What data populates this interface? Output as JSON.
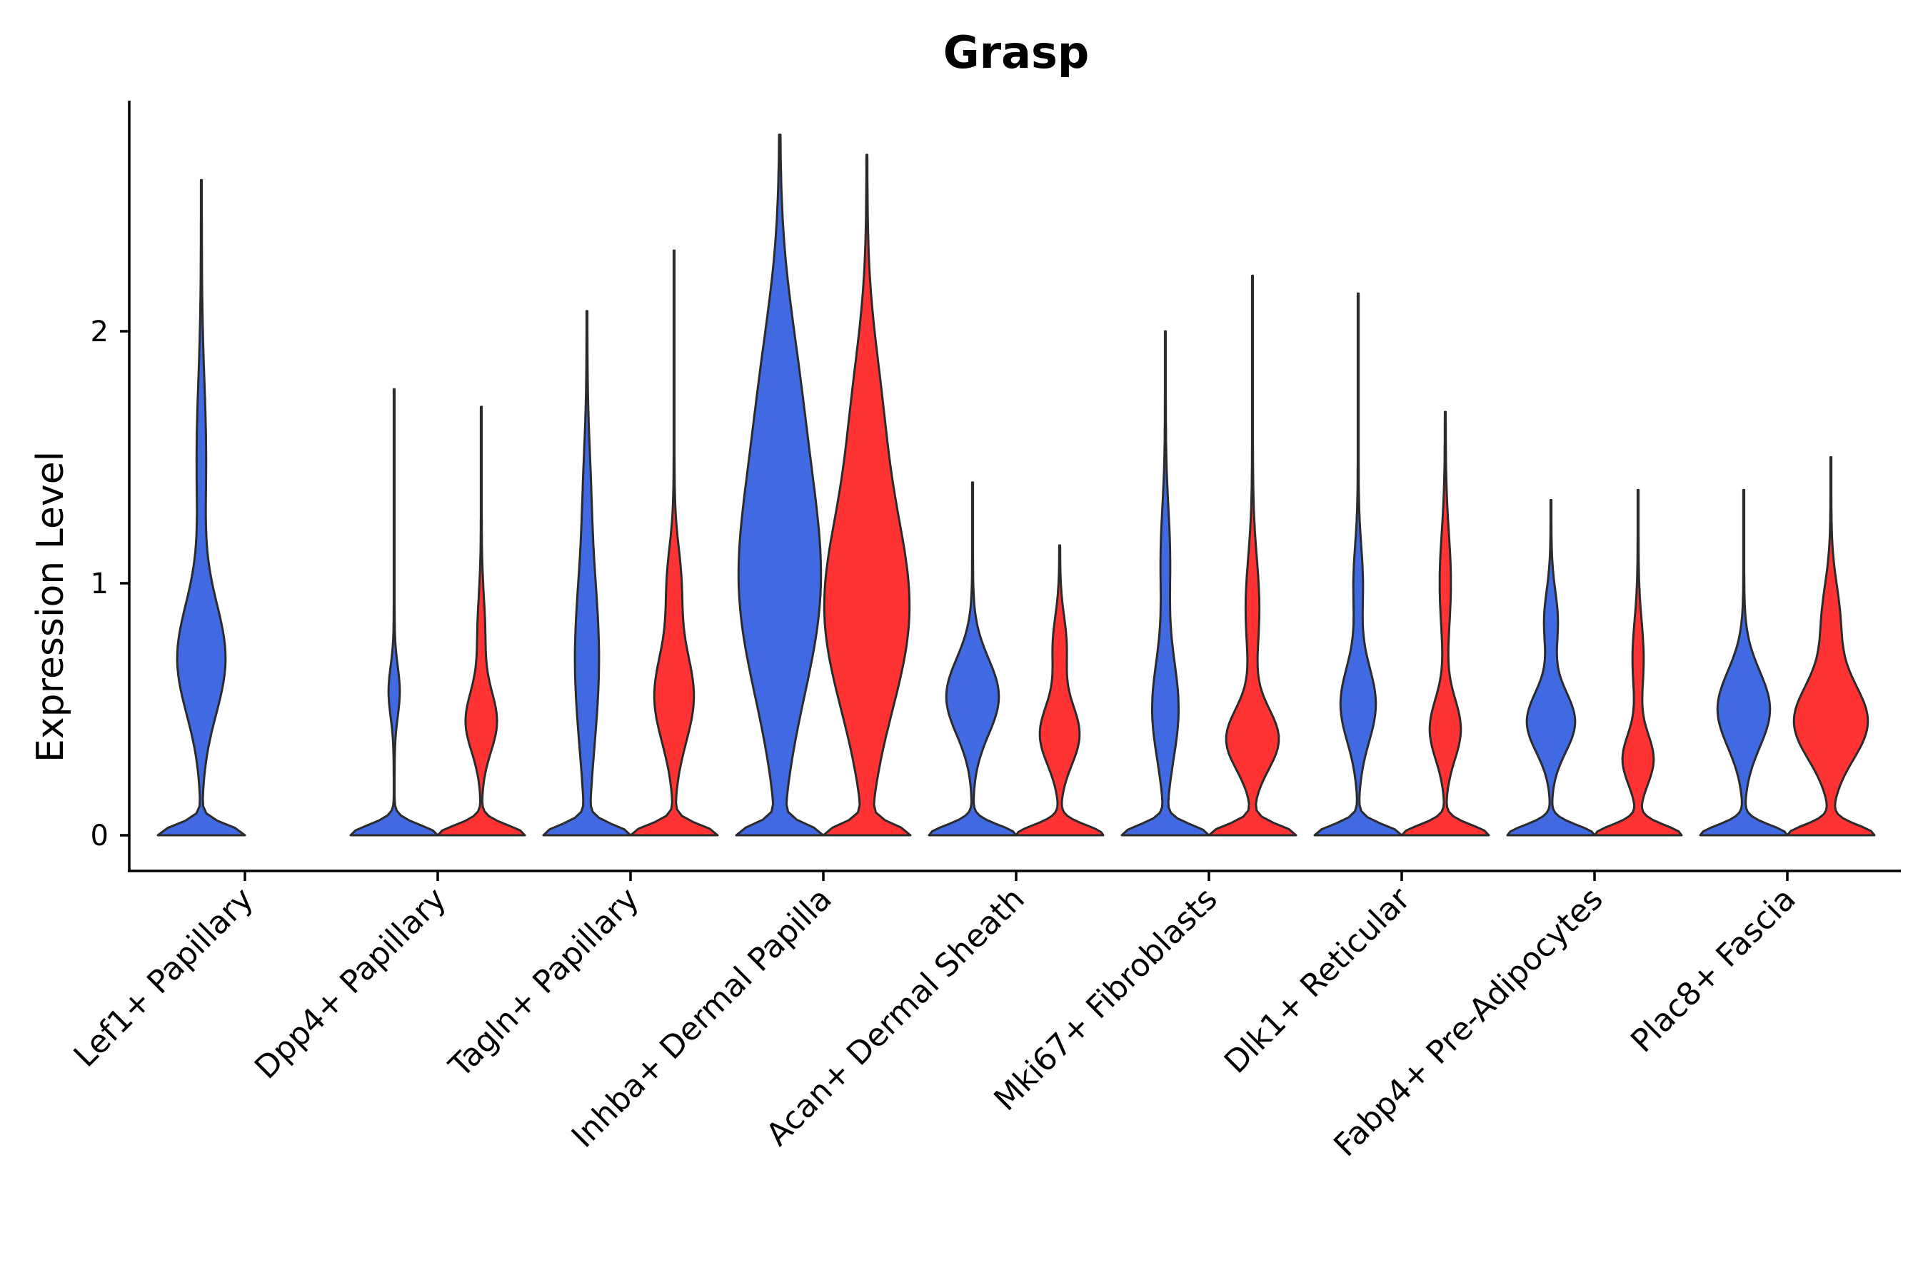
{
  "chart_data": {
    "type": "violin",
    "title": "Grasp",
    "xlabel": "",
    "ylabel": "Expression Level",
    "ylim": [
      -0.14,
      2.9
    ],
    "yticks": [
      0,
      1,
      2
    ],
    "colors": {
      "blue_group": "#4169E1",
      "red_group": "#FF3333"
    },
    "categories": [
      "Lef1+ Papillary",
      "Dpp4+ Papillary",
      "Tagln+ Papillary",
      "Inhba+ Dermal Papilla",
      "Acan+ Dermal Sheath",
      "Mki67+ Fibroblasts",
      "Dlk1+ Reticular",
      "Fabp4+ Pre-Adipocytes",
      "Plac8+ Fascia"
    ],
    "violins": [
      {
        "category": 0,
        "group": "blue",
        "max": 2.6,
        "peaks": [
          [
            0,
            0.0,
            1.0
          ],
          [
            0.7,
            0.22,
            0.55
          ],
          [
            1.5,
            0.3,
            0.1
          ]
        ]
      },
      {
        "category": 1,
        "group": "blue",
        "max": 1.77,
        "peaks": [
          [
            0,
            0.0,
            1.0
          ],
          [
            0.57,
            0.1,
            0.12
          ]
        ]
      },
      {
        "category": 1,
        "group": "red",
        "max": 1.7,
        "peaks": [
          [
            0,
            0.0,
            1.0
          ],
          [
            0.45,
            0.12,
            0.35
          ],
          [
            0.8,
            0.15,
            0.08
          ]
        ]
      },
      {
        "category": 2,
        "group": "blue",
        "max": 2.08,
        "peaks": [
          [
            0,
            0.0,
            1.0
          ],
          [
            0.7,
            0.35,
            0.28
          ],
          [
            1.4,
            0.2,
            0.05
          ]
        ]
      },
      {
        "category": 2,
        "group": "red",
        "max": 2.32,
        "peaks": [
          [
            0,
            0.0,
            1.0
          ],
          [
            0.55,
            0.18,
            0.45
          ],
          [
            1.0,
            0.15,
            0.15
          ]
        ]
      },
      {
        "category": 3,
        "group": "blue",
        "max": 2.78,
        "peaks": [
          [
            0,
            0.0,
            0.95
          ],
          [
            1.0,
            0.45,
            0.95
          ],
          [
            1.8,
            0.35,
            0.3
          ]
        ]
      },
      {
        "category": 3,
        "group": "red",
        "max": 2.7,
        "peaks": [
          [
            0,
            0.0,
            0.95
          ],
          [
            0.9,
            0.4,
            1.0
          ],
          [
            1.7,
            0.3,
            0.25
          ]
        ]
      },
      {
        "category": 4,
        "group": "blue",
        "max": 1.4,
        "peaks": [
          [
            0,
            0.0,
            1.0
          ],
          [
            0.55,
            0.15,
            0.6
          ]
        ]
      },
      {
        "category": 4,
        "group": "red",
        "max": 1.15,
        "peaks": [
          [
            0,
            0.0,
            1.0
          ],
          [
            0.4,
            0.12,
            0.45
          ],
          [
            0.75,
            0.12,
            0.15
          ]
        ]
      },
      {
        "category": 5,
        "group": "blue",
        "max": 2.0,
        "peaks": [
          [
            0,
            0.0,
            1.0
          ],
          [
            0.5,
            0.2,
            0.3
          ],
          [
            1.1,
            0.2,
            0.1
          ]
        ]
      },
      {
        "category": 5,
        "group": "red",
        "max": 2.22,
        "peaks": [
          [
            0,
            0.0,
            1.0
          ],
          [
            0.38,
            0.12,
            0.6
          ],
          [
            0.9,
            0.2,
            0.15
          ]
        ]
      },
      {
        "category": 6,
        "group": "blue",
        "max": 2.15,
        "peaks": [
          [
            0,
            0.0,
            1.0
          ],
          [
            0.52,
            0.15,
            0.4
          ],
          [
            1.0,
            0.15,
            0.1
          ]
        ]
      },
      {
        "category": 6,
        "group": "red",
        "max": 1.68,
        "peaks": [
          [
            0,
            0.0,
            1.0
          ],
          [
            0.42,
            0.12,
            0.35
          ],
          [
            1.0,
            0.2,
            0.12
          ]
        ]
      },
      {
        "category": 7,
        "group": "blue",
        "max": 1.33,
        "peaks": [
          [
            0,
            0.0,
            1.0
          ],
          [
            0.45,
            0.12,
            0.55
          ],
          [
            0.85,
            0.12,
            0.15
          ]
        ]
      },
      {
        "category": 7,
        "group": "red",
        "max": 1.37,
        "peaks": [
          [
            0,
            0.0,
            1.0
          ],
          [
            0.3,
            0.1,
            0.35
          ],
          [
            0.7,
            0.15,
            0.12
          ]
        ]
      },
      {
        "category": 8,
        "group": "blue",
        "max": 1.37,
        "peaks": [
          [
            0,
            0.0,
            1.0
          ],
          [
            0.5,
            0.15,
            0.6
          ]
        ]
      },
      {
        "category": 8,
        "group": "red",
        "max": 1.5,
        "peaks": [
          [
            0,
            0.0,
            1.0
          ],
          [
            0.45,
            0.15,
            0.85
          ],
          [
            0.85,
            0.15,
            0.2
          ]
        ]
      }
    ]
  }
}
